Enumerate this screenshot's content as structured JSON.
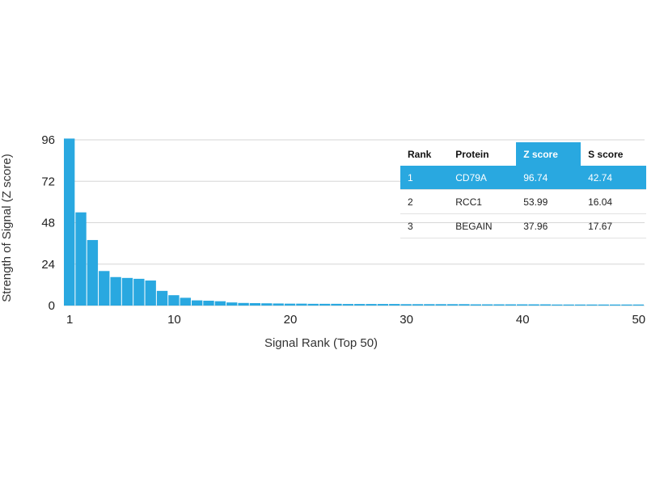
{
  "chart_data": {
    "type": "bar",
    "xlabel": "Signal Rank (Top 50)",
    "ylabel": "Strength of Signal (Z score)",
    "xlim": [
      1,
      50
    ],
    "ylim": [
      0,
      96
    ],
    "xticks": [
      1,
      10,
      20,
      30,
      40,
      50
    ],
    "yticks": [
      0,
      24,
      48,
      72,
      96
    ],
    "grid": "horizontal",
    "x": [
      1,
      2,
      3,
      4,
      5,
      6,
      7,
      8,
      9,
      10,
      11,
      12,
      13,
      14,
      15,
      16,
      17,
      18,
      19,
      20,
      21,
      22,
      23,
      24,
      25,
      26,
      27,
      28,
      29,
      30,
      31,
      32,
      33,
      34,
      35,
      36,
      37,
      38,
      39,
      40,
      41,
      42,
      43,
      44,
      45,
      46,
      47,
      48,
      49,
      50
    ],
    "values": [
      96.74,
      53.99,
      37.96,
      20,
      16.5,
      16,
      15.5,
      14.5,
      8.5,
      6,
      4.5,
      3,
      2.8,
      2.5,
      1.8,
      1.5,
      1.4,
      1.3,
      1.2,
      1.1,
      1.1,
      1.0,
      1.0,
      1.0,
      0.9,
      0.9,
      0.9,
      0.9,
      0.9,
      0.8,
      0.8,
      0.8,
      0.8,
      0.8,
      0.8,
      0.7,
      0.7,
      0.7,
      0.7,
      0.7,
      0.7,
      0.7,
      0.6,
      0.6,
      0.6,
      0.6,
      0.6,
      0.6,
      0.6,
      0.6
    ]
  },
  "table": {
    "headers": [
      "Rank",
      "Protein",
      "Z score",
      "S score"
    ],
    "rows": [
      [
        "1",
        "CD79A",
        "96.74",
        "42.74"
      ],
      [
        "2",
        "RCC1",
        "53.99",
        "16.04"
      ],
      [
        "3",
        "BEGAIN",
        "37.96",
        "17.67"
      ]
    ],
    "colors": {
      "accent": "#29a8e0"
    }
  }
}
